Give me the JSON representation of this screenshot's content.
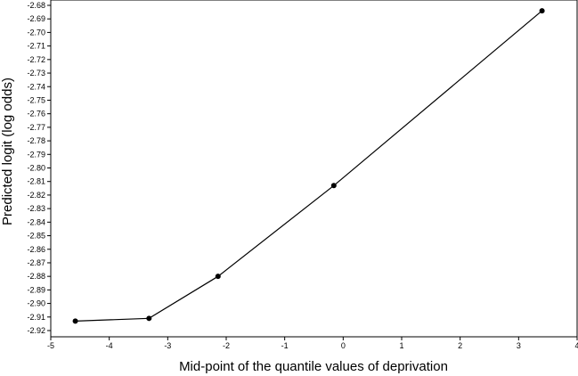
{
  "chart_data": {
    "type": "line",
    "title": "",
    "xlabel": "Mid-point of the quantile values of deprivation",
    "ylabel": "Predicted logit (log odds)",
    "xlim": [
      -5,
      4
    ],
    "ylim": [
      -2.92,
      -2.68
    ],
    "x_ticks": [
      -5,
      -4,
      -3,
      -2,
      -1,
      0,
      1,
      2,
      3,
      4
    ],
    "y_ticks": [
      -2.92,
      -2.91,
      -2.9,
      -2.89,
      -2.88,
      -2.87,
      -2.86,
      -2.85,
      -2.84,
      -2.83,
      -2.82,
      -2.81,
      -2.8,
      -2.79,
      -2.78,
      -2.77,
      -2.76,
      -2.75,
      -2.74,
      -2.73,
      -2.72,
      -2.71,
      -2.7,
      -2.69,
      -2.68
    ],
    "grid": false,
    "legend": "none",
    "series": [
      {
        "x": [
          -4.58,
          -3.32,
          -2.14,
          -0.16,
          3.4
        ],
        "y": [
          -2.913,
          -2.911,
          -2.88,
          -2.813,
          -2.684
        ]
      }
    ],
    "line_color": "#000000",
    "marker_color": "#000000"
  }
}
